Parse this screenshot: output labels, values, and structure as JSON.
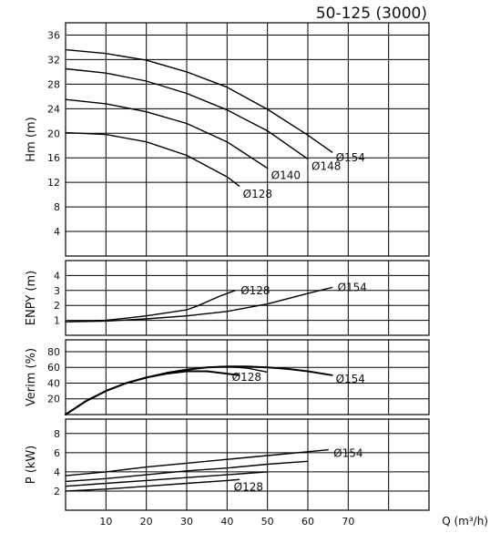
{
  "title": "50-125 (3000)",
  "x_axis": {
    "label": "Q (m³/h)",
    "ticks": [
      10,
      20,
      30,
      40,
      50,
      60,
      70
    ],
    "range": [
      0,
      90
    ]
  },
  "colors": {
    "grid": "#000000",
    "curve": "#000000",
    "background": "#ffffff"
  },
  "chart_data": [
    {
      "type": "line",
      "panel": "head",
      "ylabel": "Hm (m)",
      "ylim": [
        0,
        38
      ],
      "yticks": [
        4,
        8,
        12,
        16,
        20,
        24,
        28,
        32,
        36
      ],
      "xlim": [
        0,
        90
      ],
      "series": [
        {
          "name": "Ø154",
          "label": "Ø154",
          "x": [
            0,
            10,
            20,
            30,
            40,
            50,
            60,
            66
          ],
          "y": [
            33.6,
            33.0,
            31.9,
            30.0,
            27.5,
            23.9,
            19.7,
            16.9
          ]
        },
        {
          "name": "Ø148",
          "label": "Ø148",
          "x": [
            0,
            10,
            20,
            30,
            40,
            50,
            60
          ],
          "y": [
            30.5,
            29.8,
            28.5,
            26.5,
            23.8,
            20.4,
            15.8
          ]
        },
        {
          "name": "Ø140",
          "label": "Ø140",
          "x": [
            0,
            10,
            20,
            30,
            40,
            50
          ],
          "y": [
            25.5,
            24.8,
            23.5,
            21.6,
            18.6,
            14.3
          ]
        },
        {
          "name": "Ø128",
          "label": "Ø128",
          "x": [
            0,
            10,
            20,
            30,
            40,
            43
          ],
          "y": [
            20.1,
            19.8,
            18.6,
            16.4,
            12.9,
            11.4
          ]
        }
      ]
    },
    {
      "type": "line",
      "panel": "npsh",
      "ylabel": "ENPY (m)",
      "ylim": [
        0,
        5
      ],
      "yticks": [
        1,
        2,
        3,
        4
      ],
      "xlim": [
        0,
        90
      ],
      "series": [
        {
          "name": "Ø128",
          "label": "Ø128",
          "x": [
            0,
            10,
            20,
            30,
            33,
            38,
            42
          ],
          "y": [
            0.9,
            1.0,
            1.3,
            1.7,
            2.0,
            2.6,
            3.0
          ]
        },
        {
          "name": "Ø154",
          "label": "Ø154",
          "x": [
            0,
            10,
            20,
            30,
            40,
            50,
            60,
            66
          ],
          "y": [
            0.9,
            0.95,
            1.1,
            1.3,
            1.6,
            2.1,
            2.8,
            3.2
          ]
        }
      ]
    },
    {
      "type": "line",
      "panel": "efficiency",
      "ylabel": "Verim (%)",
      "ylim": [
        0,
        95
      ],
      "yticks": [
        20,
        40,
        60,
        80
      ],
      "xlim": [
        0,
        90
      ],
      "series": [
        {
          "name": "Ø128",
          "label": "Ø128",
          "x": [
            0,
            5,
            10,
            15,
            20,
            25,
            30,
            35,
            40,
            43
          ],
          "y": [
            0,
            17,
            30,
            40,
            47,
            52,
            55,
            55,
            52,
            50
          ]
        },
        {
          "name": "Ø154",
          "label": "Ø154",
          "x": [
            0,
            5,
            10,
            15,
            20,
            25,
            30,
            35,
            40,
            45,
            50,
            55,
            60,
            66
          ],
          "y": [
            0,
            17,
            30,
            40,
            47,
            53,
            57,
            60,
            61,
            61,
            60,
            58,
            55,
            50
          ]
        },
        {
          "name": "",
          "label": "",
          "x": [
            30,
            35,
            40,
            45,
            50
          ],
          "y": [
            57,
            60,
            61,
            59,
            54
          ]
        }
      ]
    },
    {
      "type": "line",
      "panel": "power",
      "ylabel": "P (kW)",
      "ylim": [
        0,
        9.5
      ],
      "yticks": [
        2,
        4,
        6,
        8
      ],
      "xlim": [
        0,
        90
      ],
      "series": [
        {
          "name": "Ø154",
          "label": "Ø154",
          "x": [
            0,
            10,
            20,
            30,
            40,
            50,
            60,
            65
          ],
          "y": [
            3.6,
            4.0,
            4.5,
            4.9,
            5.3,
            5.7,
            6.1,
            6.3
          ]
        },
        {
          "name": "",
          "label": "",
          "x": [
            0,
            10,
            20,
            30,
            40,
            50,
            60
          ],
          "y": [
            3.0,
            3.3,
            3.7,
            4.1,
            4.4,
            4.8,
            5.1
          ]
        },
        {
          "name": "",
          "label": "",
          "x": [
            0,
            10,
            20,
            30,
            40,
            50
          ],
          "y": [
            2.5,
            2.8,
            3.1,
            3.4,
            3.7,
            4.0
          ]
        },
        {
          "name": "Ø128",
          "label": "Ø128",
          "x": [
            0,
            10,
            20,
            30,
            40,
            43
          ],
          "y": [
            2.0,
            2.2,
            2.5,
            2.8,
            3.1,
            3.2
          ]
        }
      ]
    }
  ]
}
